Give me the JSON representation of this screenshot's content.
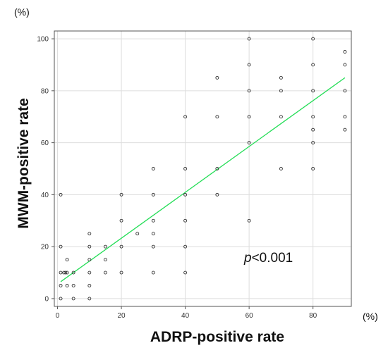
{
  "chart_data": {
    "type": "scatter",
    "title": "",
    "xlabel": "ADRP-positive rate",
    "ylabel": "MWM-positive rate",
    "x_unit": "(%)",
    "y_unit": "(%)",
    "xlim": [
      -1,
      92
    ],
    "ylim": [
      -3,
      103
    ],
    "x_ticks": [
      0,
      20,
      40,
      60,
      80
    ],
    "y_ticks": [
      0,
      20,
      40,
      60,
      80,
      100
    ],
    "grid": true,
    "annotation": {
      "p": "p",
      "rest": "<0.001"
    },
    "fit_line": {
      "x0": 1,
      "y0": 6.5,
      "x1": 90,
      "y1": 85,
      "color": "#22dd55"
    },
    "points": [
      {
        "x": 1,
        "y": 40
      },
      {
        "x": 1,
        "y": 20
      },
      {
        "x": 1,
        "y": 10
      },
      {
        "x": 1,
        "y": 5
      },
      {
        "x": 1,
        "y": 0
      },
      {
        "x": 2,
        "y": 10
      },
      {
        "x": 2.5,
        "y": 10
      },
      {
        "x": 3,
        "y": 15
      },
      {
        "x": 3,
        "y": 10
      },
      {
        "x": 3,
        "y": 5
      },
      {
        "x": 5,
        "y": 10
      },
      {
        "x": 5,
        "y": 5
      },
      {
        "x": 5,
        "y": 0
      },
      {
        "x": 10,
        "y": 25
      },
      {
        "x": 10,
        "y": 20
      },
      {
        "x": 10,
        "y": 15
      },
      {
        "x": 10,
        "y": 10
      },
      {
        "x": 10,
        "y": 5
      },
      {
        "x": 10,
        "y": 0
      },
      {
        "x": 15,
        "y": 20
      },
      {
        "x": 15,
        "y": 15
      },
      {
        "x": 15,
        "y": 10
      },
      {
        "x": 20,
        "y": 40
      },
      {
        "x": 20,
        "y": 30
      },
      {
        "x": 20,
        "y": 20
      },
      {
        "x": 20,
        "y": 10
      },
      {
        "x": 25,
        "y": 25
      },
      {
        "x": 30,
        "y": 50
      },
      {
        "x": 30,
        "y": 40
      },
      {
        "x": 30,
        "y": 30
      },
      {
        "x": 30,
        "y": 25
      },
      {
        "x": 30,
        "y": 20
      },
      {
        "x": 30,
        "y": 10
      },
      {
        "x": 40,
        "y": 70
      },
      {
        "x": 40,
        "y": 50
      },
      {
        "x": 40,
        "y": 40
      },
      {
        "x": 40,
        "y": 30
      },
      {
        "x": 40,
        "y": 20
      },
      {
        "x": 40,
        "y": 10
      },
      {
        "x": 50,
        "y": 85
      },
      {
        "x": 50,
        "y": 70
      },
      {
        "x": 50,
        "y": 50
      },
      {
        "x": 50,
        "y": 40
      },
      {
        "x": 60,
        "y": 100
      },
      {
        "x": 60,
        "y": 90
      },
      {
        "x": 60,
        "y": 80
      },
      {
        "x": 60,
        "y": 70
      },
      {
        "x": 60,
        "y": 60
      },
      {
        "x": 60,
        "y": 30
      },
      {
        "x": 70,
        "y": 85
      },
      {
        "x": 70,
        "y": 80
      },
      {
        "x": 70,
        "y": 70
      },
      {
        "x": 70,
        "y": 50
      },
      {
        "x": 80,
        "y": 100
      },
      {
        "x": 80,
        "y": 90
      },
      {
        "x": 80,
        "y": 80
      },
      {
        "x": 80,
        "y": 70
      },
      {
        "x": 80,
        "y": 65
      },
      {
        "x": 80,
        "y": 60
      },
      {
        "x": 80,
        "y": 50
      },
      {
        "x": 90,
        "y": 95
      },
      {
        "x": 90,
        "y": 90
      },
      {
        "x": 90,
        "y": 80
      },
      {
        "x": 90,
        "y": 70
      },
      {
        "x": 90,
        "y": 65
      }
    ]
  }
}
